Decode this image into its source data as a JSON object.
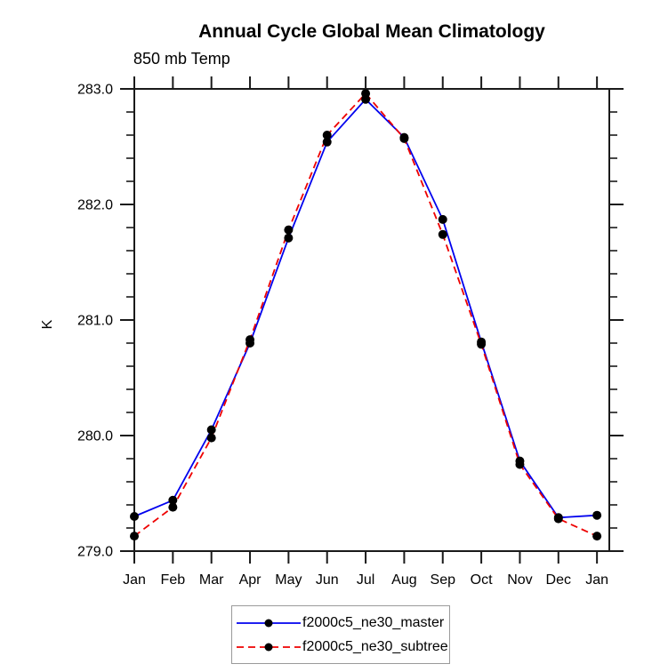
{
  "chart_data": {
    "type": "line",
    "title": "Annual Cycle Global Mean Climatology",
    "subtitle": "850 mb Temp",
    "ylabel": "K",
    "categories": [
      "Jan",
      "Feb",
      "Mar",
      "Apr",
      "May",
      "Jun",
      "Jul",
      "Aug",
      "Sep",
      "Oct",
      "Nov",
      "Dec",
      "Jan"
    ],
    "ylim": [
      279.0,
      283.0
    ],
    "xlim_month_units": [
      0,
      12.32
    ],
    "y_major_ticks": [
      279.0,
      280.0,
      281.0,
      282.0,
      283.0
    ],
    "y_tick_decimals": 1,
    "y_minor_step": 0.2,
    "grid": "off",
    "legend_position": "bottom-center",
    "axis_color": "#1a1a1a",
    "marker_color": "#000000",
    "series": [
      {
        "name": "f2000c5_ne30_master",
        "color": "#0000ee",
        "style": "solid",
        "marker": "circle",
        "values": [
          279.3,
          279.44,
          280.05,
          280.8,
          281.71,
          282.54,
          282.91,
          282.58,
          281.87,
          280.81,
          279.78,
          279.29,
          279.31
        ]
      },
      {
        "name": "f2000c5_ne30_subtree",
        "color": "#ee0000",
        "style": "dashed",
        "marker": "circle",
        "values": [
          279.13,
          279.38,
          279.98,
          280.83,
          281.78,
          282.6,
          282.96,
          282.57,
          281.74,
          280.79,
          279.75,
          279.28,
          279.13
        ]
      }
    ]
  }
}
